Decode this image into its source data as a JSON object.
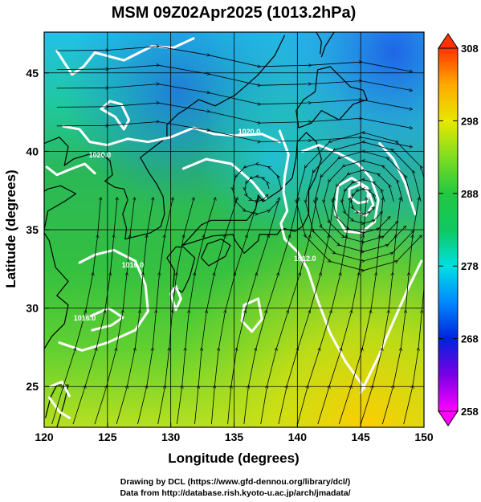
{
  "title": "MSM 09Z02Apr2025 (1013.2hPa)",
  "xlabel": "Longitude (degrees)",
  "ylabel": "Latitude  (degrees)",
  "credits": [
    "Drawing by DCL (https://www.gfd-dennou.org/library/dcl/)",
    "Data from http://database.rish.kyoto-u.ac.jp/arch/jmadata/"
  ],
  "map": {
    "lon_range": [
      120,
      150
    ],
    "lat_range": [
      22.4,
      47.6
    ],
    "lon_ticks": [
      120,
      125,
      130,
      135,
      140,
      145,
      150
    ],
    "lat_ticks": [
      25,
      30,
      35,
      40,
      45
    ],
    "grid": true,
    "field_colorbar": {
      "range": [
        258,
        308
      ],
      "ticks": [
        258,
        268,
        278,
        288,
        298,
        308
      ],
      "extend": "both",
      "colormap": [
        "#ff00ff",
        "#7a00e6",
        "#0022dd",
        "#0088ff",
        "#00e0e0",
        "#10c860",
        "#22c840",
        "#80dd20",
        "#e8e800",
        "#ffaa00",
        "#ff3300"
      ]
    },
    "contour_labels": [
      {
        "text": "1020.0",
        "lon": 136.2,
        "lat": 41.1
      },
      {
        "text": "1020.0",
        "lon": 124.4,
        "lat": 39.6
      },
      {
        "text": "1012.0",
        "lon": 140.6,
        "lat": 33.0
      },
      {
        "text": "1016.0",
        "lon": 127.0,
        "lat": 32.6
      },
      {
        "text": "1016.0",
        "lon": 123.2,
        "lat": 29.2
      }
    ],
    "colors": {
      "coastline": "#000000",
      "contour": "#ffffff",
      "streamline": "#000000"
    }
  }
}
